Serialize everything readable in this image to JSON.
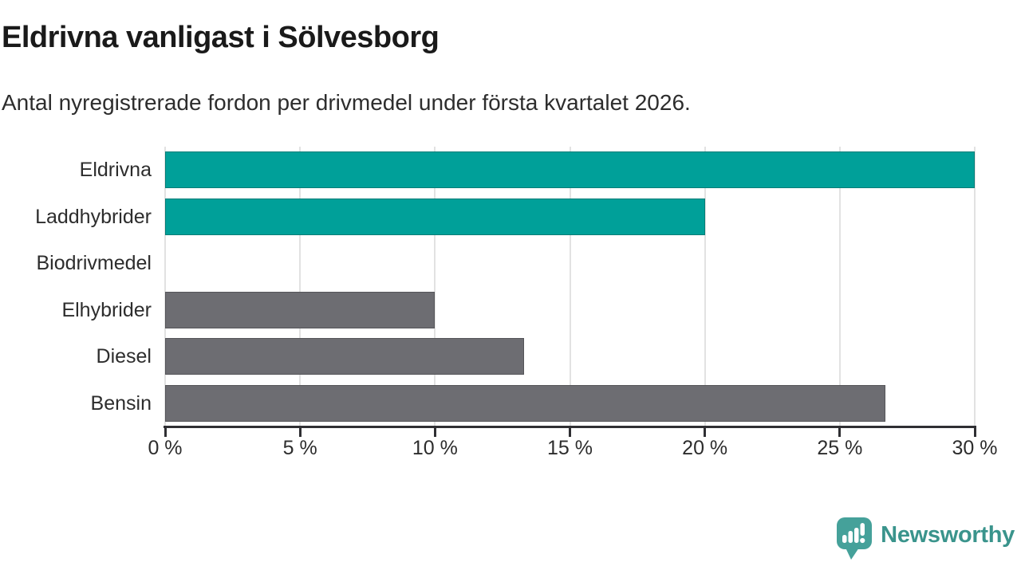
{
  "header": {
    "title": "Eldrivna vanligast i Sölvesborg",
    "subtitle": "Antal nyregistrerade fordon per drivmedel under första kvartalet 2026."
  },
  "chart_data": {
    "type": "bar",
    "orientation": "horizontal",
    "title": "Eldrivna vanligast i Sölvesborg",
    "subtitle": "Antal nyregistrerade fordon per drivmedel under första kvartalet 2026.",
    "categories": [
      "Eldrivna",
      "Laddhybrider",
      "Biodrivmedel",
      "Elhybrider",
      "Diesel",
      "Bensin"
    ],
    "values": [
      30,
      20,
      0,
      10,
      13.3,
      26.7
    ],
    "unit": "%",
    "bar_colors": [
      "#00a099",
      "#00a099",
      "#6d6d72",
      "#6d6d72",
      "#6d6d72",
      "#6d6d72"
    ],
    "xlim": [
      0,
      30
    ],
    "x_ticks": [
      0,
      5,
      10,
      15,
      20,
      25,
      30
    ],
    "x_tick_labels": [
      "0 %",
      "5 %",
      "10 %",
      "15 %",
      "20 %",
      "25 %",
      "30 %"
    ],
    "grid": "vertical-on",
    "legend": "none"
  },
  "branding": {
    "logo_text": "Newsworthy",
    "logo_text_color": "#3a948c",
    "logo_bubble_color": "#45a19a"
  },
  "colors": {
    "accent_teal": "#00a099",
    "neutral_gray": "#6d6d72",
    "gridline": "#e2e2e2",
    "axis": "#2f2f33",
    "title_text": "#1a1a1a",
    "body_text": "#2d2d2d",
    "background": "#ffffff"
  }
}
